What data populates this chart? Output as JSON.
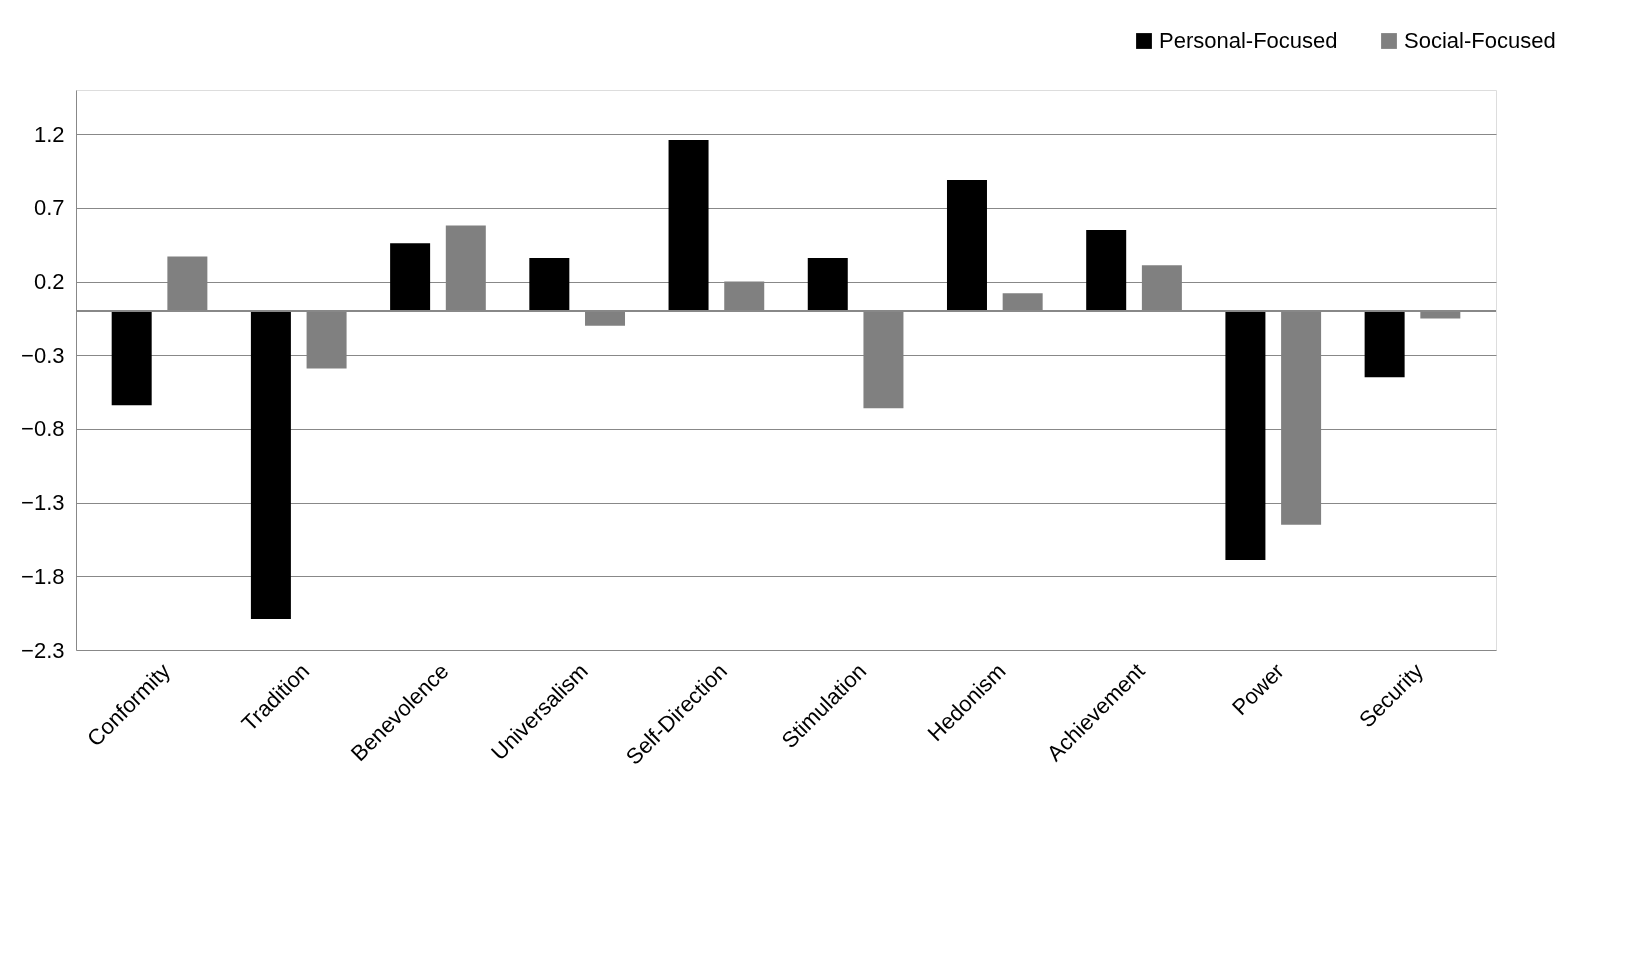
{
  "chart_data": {
    "type": "bar",
    "categories": [
      "Conformity",
      "Tradition",
      "Benevolence",
      "Universalism",
      "Self-Direction",
      "Stimulation",
      "Hedonism",
      "Achievement",
      "Power",
      "Security"
    ],
    "series": [
      {
        "name": "Personal-Focused",
        "color": "#000000",
        "values": [
          -0.64,
          -2.09,
          0.46,
          0.36,
          1.16,
          0.36,
          0.89,
          0.55,
          -1.69,
          -0.45
        ]
      },
      {
        "name": "Social-Focused",
        "color": "#808080",
        "values": [
          0.37,
          -0.39,
          0.58,
          -0.1,
          0.2,
          -0.66,
          0.12,
          0.31,
          -1.45,
          -0.05
        ]
      }
    ],
    "ylim": [
      -2.3,
      1.5
    ],
    "yticks": [
      -2.3,
      -1.8,
      -1.3,
      -0.8,
      -0.3,
      0.2,
      0.7,
      1.2
    ],
    "grid": "y",
    "legend": "top right"
  }
}
